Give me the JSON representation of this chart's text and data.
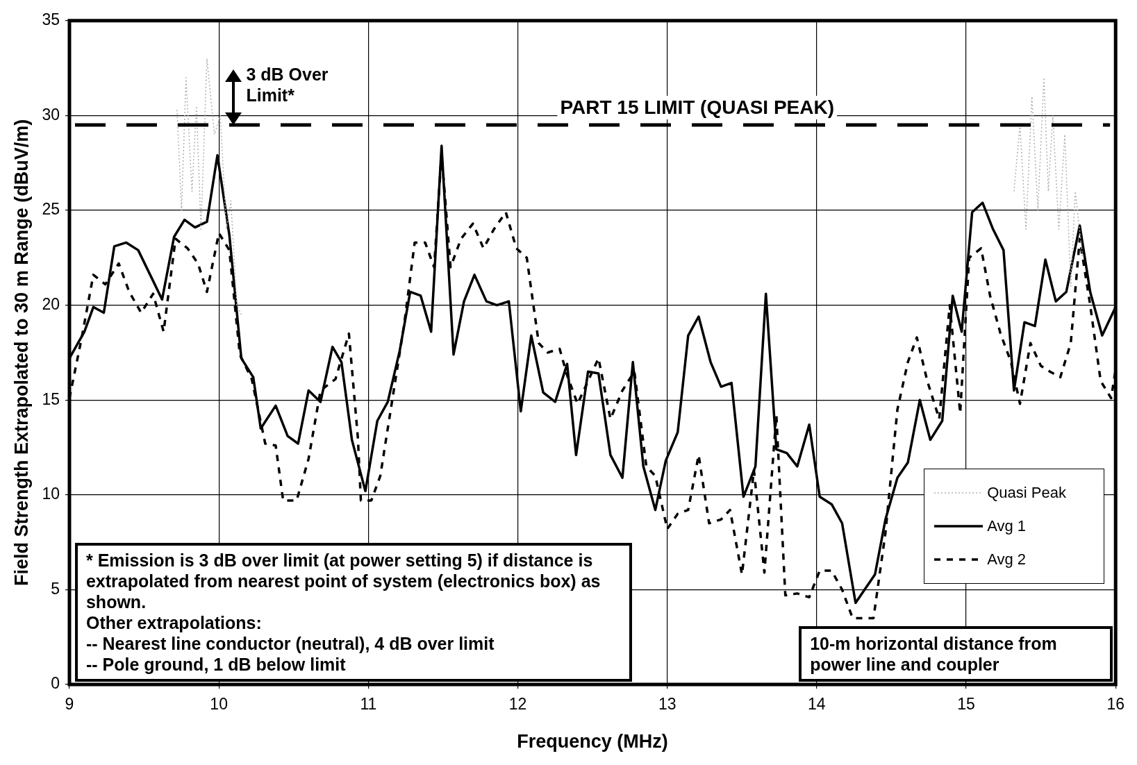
{
  "chart_data": {
    "type": "line",
    "xlabel": "Frequency (MHz)",
    "ylabel": "Field Strength Extrapolated to 30 m Range (dBuV/m)",
    "xlim": [
      9,
      16
    ],
    "xticks": [
      9,
      10,
      11,
      12,
      13,
      14,
      15,
      16
    ],
    "ylim": [
      0,
      35
    ],
    "yticks": [
      0,
      5,
      10,
      15,
      20,
      25,
      30,
      35
    ],
    "grid": true,
    "legend": "bottom right",
    "marker": "none",
    "series": [
      {
        "name": "Quasi Peak",
        "color": "#b0b0b0",
        "line_style": "dotted",
        "x": [
          9.72,
          9.75,
          9.78,
          9.82,
          9.85,
          9.88,
          9.92,
          9.97,
          10.01,
          10.05,
          10.08,
          10.12,
          10.15,
          12.5,
          15.32,
          15.36,
          15.4,
          15.44,
          15.48,
          15.52,
          15.55,
          15.58,
          15.62,
          15.66,
          15.7,
          15.73,
          15.78
        ],
        "values": [
          30.3,
          25,
          32,
          26,
          30.5,
          24,
          33,
          29,
          30,
          24,
          25.5,
          20,
          19.5,
          null,
          26,
          29.5,
          24,
          31,
          25,
          32,
          26,
          30,
          24,
          29,
          21,
          26,
          22.5
        ]
      },
      {
        "name": "Avg 1",
        "color": "#000000",
        "line_style": "solid",
        "x": [
          9.0,
          9.1,
          9.16,
          9.23,
          9.3,
          9.38,
          9.46,
          9.54,
          9.62,
          9.7,
          9.77,
          9.84,
          9.92,
          9.99,
          10.07,
          10.15,
          10.23,
          10.28,
          10.38,
          10.46,
          10.53,
          10.6,
          10.68,
          10.76,
          10.82,
          10.89,
          10.98,
          11.06,
          11.13,
          11.21,
          11.28,
          11.35,
          11.42,
          11.49,
          11.57,
          11.64,
          11.71,
          11.79,
          11.86,
          11.94,
          12.02,
          12.09,
          12.17,
          12.25,
          12.33,
          12.39,
          12.47,
          12.54,
          12.62,
          12.7,
          12.77,
          12.84,
          12.92,
          12.99,
          13.07,
          13.14,
          13.21,
          13.29,
          13.36,
          13.43,
          13.51,
          13.59,
          13.66,
          13.73,
          13.8,
          13.87,
          13.95,
          14.02,
          14.1,
          14.17,
          14.26,
          14.39,
          14.46,
          14.54,
          14.61,
          14.69,
          14.76,
          14.84,
          14.91,
          14.97,
          15.04,
          15.11,
          15.18,
          15.25,
          15.32,
          15.39,
          15.46,
          15.53,
          15.6,
          15.67,
          15.76,
          15.83,
          15.91,
          16.0
        ],
        "values": [
          17.2,
          18.6,
          19.9,
          19.6,
          23.1,
          23.3,
          22.9,
          21.6,
          20.3,
          23.6,
          24.5,
          24.1,
          24.4,
          27.9,
          23.7,
          17.2,
          16.2,
          13.5,
          14.7,
          13.1,
          12.7,
          15.5,
          14.9,
          17.8,
          17.0,
          12.9,
          10.2,
          13.9,
          14.9,
          17.6,
          20.7,
          20.5,
          18.6,
          28.4,
          17.4,
          20.2,
          21.6,
          20.2,
          20.0,
          20.2,
          14.4,
          18.4,
          15.4,
          14.9,
          16.9,
          12.1,
          16.5,
          16.4,
          12.1,
          10.9,
          17.0,
          11.5,
          9.2,
          11.8,
          13.3,
          18.4,
          19.4,
          17.0,
          15.7,
          15.9,
          9.9,
          11.5,
          20.6,
          12.4,
          12.2,
          11.5,
          13.7,
          9.9,
          9.5,
          8.5,
          4.3,
          5.8,
          8.7,
          10.9,
          11.7,
          15.0,
          12.9,
          13.9,
          20.5,
          18.6,
          24.9,
          25.4,
          24.0,
          22.9,
          15.5,
          19.1,
          18.9,
          22.4,
          20.2,
          20.7,
          24.2,
          20.7,
          18.4,
          19.9
        ]
      },
      {
        "name": "Avg 2",
        "color": "#000000",
        "line_style": "dashed",
        "x": [
          9.0,
          9.08,
          9.16,
          9.24,
          9.33,
          9.4,
          9.48,
          9.56,
          9.63,
          9.71,
          9.79,
          9.86,
          9.92,
          10.0,
          10.07,
          10.14,
          10.22,
          10.31,
          10.38,
          10.43,
          10.52,
          10.6,
          10.68,
          10.78,
          10.87,
          10.93,
          10.95,
          11.02,
          11.08,
          11.16,
          11.24,
          11.31,
          11.38,
          11.44,
          11.49,
          11.55,
          11.62,
          11.7,
          11.77,
          11.84,
          11.92,
          11.99,
          12.06,
          12.14,
          12.2,
          12.28,
          12.33,
          12.4,
          12.47,
          12.54,
          12.62,
          12.7,
          12.78,
          12.86,
          12.92,
          13.0,
          13.07,
          13.14,
          13.21,
          13.28,
          13.36,
          13.42,
          13.5,
          13.58,
          13.65,
          13.73,
          13.79,
          13.87,
          13.95,
          14.02,
          14.1,
          14.17,
          14.24,
          14.38,
          14.46,
          14.54,
          14.61,
          14.67,
          14.74,
          14.82,
          14.89,
          14.96,
          15.02,
          15.1,
          15.16,
          15.23,
          15.3,
          15.36,
          15.43,
          15.5,
          15.56,
          15.63,
          15.7,
          15.76,
          15.83,
          15.9,
          15.97,
          16.0
        ],
        "values": [
          15.1,
          18.2,
          21.6,
          21.1,
          22.2,
          20.7,
          19.6,
          20.6,
          18.6,
          23.5,
          23.0,
          22.2,
          20.7,
          23.8,
          22.9,
          17.4,
          16.1,
          12.7,
          12.6,
          9.7,
          9.7,
          11.9,
          15.5,
          16.1,
          18.5,
          13.0,
          9.7,
          9.7,
          11.0,
          15.0,
          19.0,
          23.3,
          23.3,
          22.0,
          28.0,
          22.0,
          23.5,
          24.3,
          23.0,
          24.0,
          24.9,
          23.0,
          22.5,
          18.0,
          17.5,
          17.7,
          16.3,
          14.8,
          16.0,
          17.2,
          14.0,
          15.5,
          16.5,
          11.5,
          11.0,
          8.2,
          9.0,
          9.2,
          12.1,
          8.5,
          8.7,
          9.2,
          5.8,
          11.3,
          5.9,
          14.2,
          4.7,
          4.8,
          4.6,
          6.0,
          6.0,
          5.0,
          3.5,
          3.5,
          8.0,
          14.5,
          17.0,
          18.3,
          16.0,
          14.0,
          20.0,
          14.3,
          22.5,
          23.0,
          20.5,
          18.5,
          17.0,
          14.8,
          18.0,
          16.8,
          16.5,
          16.2,
          18.0,
          23.5,
          20.0,
          16.0,
          15.1,
          16.6
        ]
      }
    ],
    "ref_lines": [
      {
        "axis": "y",
        "value": 29.5,
        "label": "PART 15 LIMIT (QUASI PEAK)",
        "color": "#000000",
        "line_style": "dashed"
      }
    ],
    "annotations": [
      "3 dB Over Limit*",
      "* Emission is 3 dB over limit (at power setting 5) if distance is extrapolated from nearest point of system (electronics box) as shown.\nOther extrapolations:\n-- Nearest line conductor (neutral), 4 dB over limit\n-- Pole ground, 1 dB below limit",
      "10-m horizontal distance from power line and coupler"
    ]
  }
}
